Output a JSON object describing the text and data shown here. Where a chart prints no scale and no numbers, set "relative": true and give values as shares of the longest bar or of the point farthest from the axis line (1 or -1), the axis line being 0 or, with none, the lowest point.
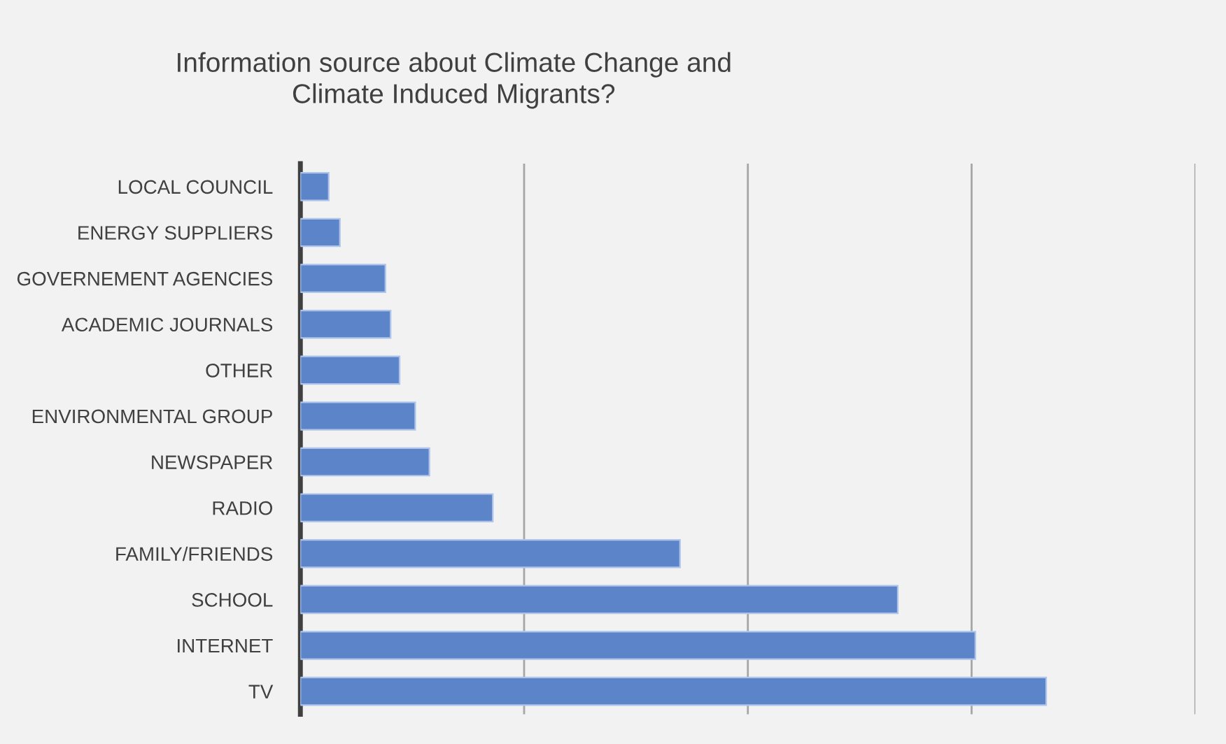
{
  "chart_data": {
    "type": "bar",
    "orientation": "horizontal",
    "relative": true,
    "title": "Information source about Climate Change and\nClimate Induced Migrants?",
    "categories": [
      "LOCAL COUNCIL",
      "ENERGY SUPPLIERS",
      "GOVERNEMENT AGENCIES",
      "ACADEMIC JOURNALS",
      "OTHER",
      "ENVIRONMENTAL GROUP",
      "NEWSPAPER",
      "RADIO",
      "FAMILY/FRIENDS",
      "SCHOOL",
      "INTERNET",
      "TV"
    ],
    "values": [
      0.038,
      0.053,
      0.114,
      0.121,
      0.133,
      0.154,
      0.173,
      0.258,
      0.509,
      0.801,
      0.905,
      1
    ],
    "color": "#5b84c9",
    "grid": "x",
    "legend": false
  }
}
